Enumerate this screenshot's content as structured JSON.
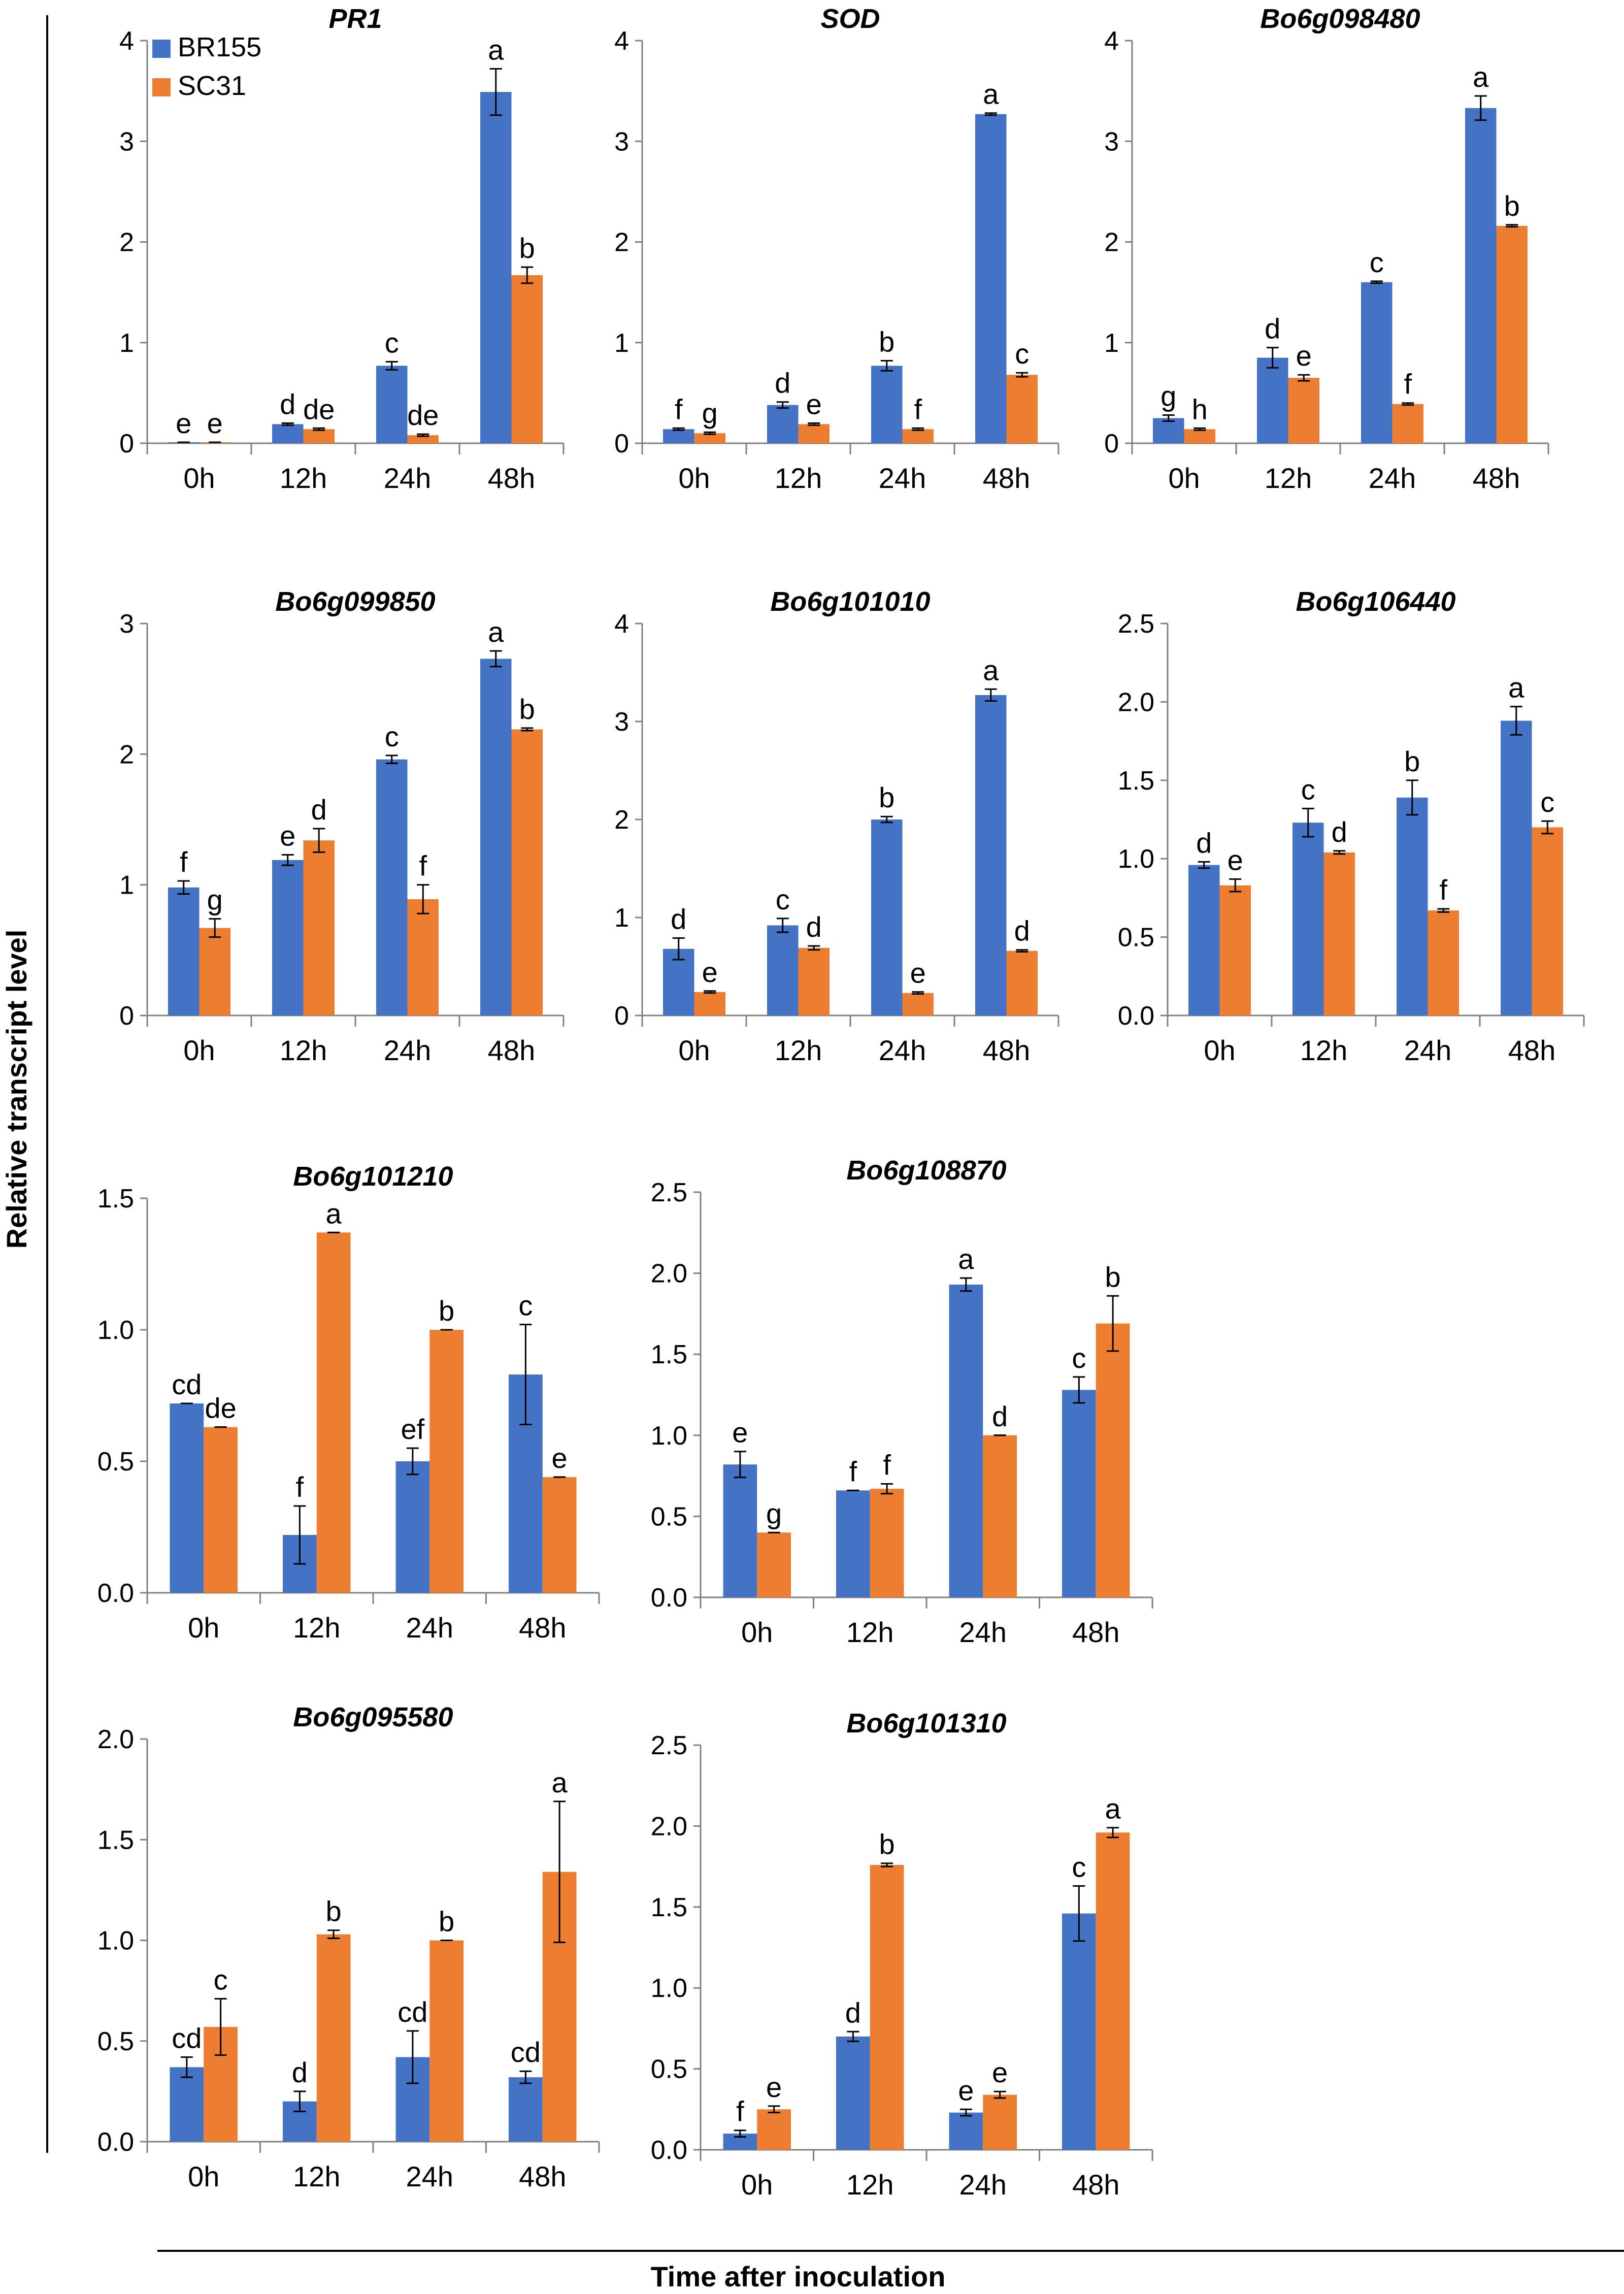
{
  "figure": {
    "ylabel": "Relative transcript level",
    "xlabel": "Time after inoculation",
    "series_colors": {
      "BR155": "#4472C4",
      "SC31": "#ED7D31"
    },
    "legend": [
      {
        "name": "BR155",
        "color": "#4472C4"
      },
      {
        "name": "SC31",
        "color": "#ED7D31"
      }
    ]
  },
  "chart_data": [
    {
      "type": "bar",
      "title": "PR1",
      "categories": [
        "0h",
        "12h",
        "24h",
        "48h"
      ],
      "ylim": [
        0,
        4
      ],
      "yticks": [
        "0",
        "1",
        "2",
        "3",
        "4"
      ],
      "series": [
        {
          "name": "BR155",
          "values": [
            0.01,
            0.19,
            0.77,
            3.49
          ],
          "errors": [
            0.0,
            0.01,
            0.04,
            0.23
          ],
          "letters": [
            "e",
            "d",
            "c",
            "a"
          ]
        },
        {
          "name": "SC31",
          "values": [
            0.01,
            0.14,
            0.08,
            1.67
          ],
          "errors": [
            0.0,
            0.01,
            0.01,
            0.08
          ],
          "letters": [
            "e",
            "de",
            "de",
            "b"
          ]
        }
      ]
    },
    {
      "type": "bar",
      "title": "SOD",
      "categories": [
        "0h",
        "12h",
        "24h",
        "48h"
      ],
      "ylim": [
        0,
        4
      ],
      "yticks": [
        "0",
        "1",
        "2",
        "3",
        "4"
      ],
      "series": [
        {
          "name": "BR155",
          "values": [
            0.14,
            0.38,
            0.77,
            3.27
          ],
          "errors": [
            0.01,
            0.03,
            0.05,
            0.01
          ],
          "letters": [
            "f",
            "d",
            "b",
            "a"
          ]
        },
        {
          "name": "SC31",
          "values": [
            0.1,
            0.19,
            0.14,
            0.68
          ],
          "errors": [
            0.01,
            0.01,
            0.01,
            0.02
          ],
          "letters": [
            "g",
            "e",
            "f",
            "c"
          ]
        }
      ]
    },
    {
      "type": "bar",
      "title": "Bo6g098480",
      "categories": [
        "0h",
        "12h",
        "24h",
        "48h"
      ],
      "ylim": [
        0,
        4
      ],
      "yticks": [
        "0",
        "1",
        "2",
        "3",
        "4"
      ],
      "series": [
        {
          "name": "BR155",
          "values": [
            0.25,
            0.85,
            1.6,
            3.33
          ],
          "errors": [
            0.03,
            0.1,
            0.01,
            0.12
          ],
          "letters": [
            "g",
            "d",
            "c",
            "a"
          ]
        },
        {
          "name": "SC31",
          "values": [
            0.14,
            0.65,
            0.39,
            2.16
          ],
          "errors": [
            0.01,
            0.03,
            0.01,
            0.01
          ],
          "letters": [
            "h",
            "e",
            "f",
            "b"
          ]
        }
      ]
    },
    {
      "type": "bar",
      "title": "Bo6g099850",
      "categories": [
        "0h",
        "12h",
        "24h",
        "48h"
      ],
      "ylim": [
        0,
        3
      ],
      "yticks": [
        "0",
        "1",
        "2",
        "3"
      ],
      "series": [
        {
          "name": "BR155",
          "values": [
            0.98,
            1.19,
            1.96,
            2.73
          ],
          "errors": [
            0.05,
            0.04,
            0.03,
            0.06
          ],
          "letters": [
            "f",
            "e",
            "c",
            "a"
          ]
        },
        {
          "name": "SC31",
          "values": [
            0.67,
            1.34,
            0.89,
            2.19
          ],
          "errors": [
            0.07,
            0.09,
            0.11,
            0.01
          ],
          "letters": [
            "g",
            "d",
            "f",
            "b"
          ]
        }
      ]
    },
    {
      "type": "bar",
      "title": "Bo6g101010",
      "categories": [
        "0h",
        "12h",
        "24h",
        "48h"
      ],
      "ylim": [
        0,
        4
      ],
      "yticks": [
        "0",
        "1",
        "2",
        "3",
        "4"
      ],
      "series": [
        {
          "name": "BR155",
          "values": [
            0.68,
            0.92,
            2.0,
            3.27
          ],
          "errors": [
            0.11,
            0.07,
            0.03,
            0.06
          ],
          "letters": [
            "d",
            "c",
            "b",
            "a"
          ]
        },
        {
          "name": "SC31",
          "values": [
            0.24,
            0.69,
            0.23,
            0.66
          ],
          "errors": [
            0.01,
            0.02,
            0.01,
            0.01
          ],
          "letters": [
            "e",
            "d",
            "e",
            "d"
          ]
        }
      ]
    },
    {
      "type": "bar",
      "title": "Bo6g106440",
      "categories": [
        "0h",
        "12h",
        "24h",
        "48h"
      ],
      "ylim": [
        0,
        2.5
      ],
      "yticks": [
        "0.0",
        "0.5",
        "1.0",
        "1.5",
        "2.0",
        "2.5"
      ],
      "series": [
        {
          "name": "BR155",
          "values": [
            0.96,
            1.23,
            1.39,
            1.88
          ],
          "errors": [
            0.02,
            0.09,
            0.11,
            0.09
          ],
          "letters": [
            "d",
            "c",
            "b",
            "a"
          ]
        },
        {
          "name": "SC31",
          "values": [
            0.83,
            1.04,
            0.67,
            1.2
          ],
          "errors": [
            0.04,
            0.01,
            0.01,
            0.04
          ],
          "letters": [
            "e",
            "d",
            "f",
            "c"
          ]
        }
      ]
    },
    {
      "type": "bar",
      "title": "Bo6g101210",
      "categories": [
        "0h",
        "12h",
        "24h",
        "48h"
      ],
      "ylim": [
        0,
        1.5
      ],
      "yticks": [
        "0.0",
        "0.5",
        "1.0",
        "1.5"
      ],
      "series": [
        {
          "name": "BR155",
          "values": [
            0.72,
            0.22,
            0.5,
            0.83
          ],
          "errors": [
            0.0,
            0.11,
            0.05,
            0.19
          ],
          "letters": [
            "cd",
            "f",
            "ef",
            "c"
          ]
        },
        {
          "name": "SC31",
          "values": [
            0.63,
            1.37,
            1.0,
            0.44
          ],
          "errors": [
            0.0,
            0.0,
            0.0,
            0.0
          ],
          "letters": [
            "de",
            "a",
            "b",
            "e"
          ]
        }
      ]
    },
    {
      "type": "bar",
      "title": "Bo6g108870",
      "categories": [
        "0h",
        "12h",
        "24h",
        "48h"
      ],
      "ylim": [
        0,
        2.5
      ],
      "yticks": [
        "0.0",
        "0.5",
        "1.0",
        "1.5",
        "2.0",
        "2.5"
      ],
      "series": [
        {
          "name": "BR155",
          "values": [
            0.82,
            0.66,
            1.93,
            1.28
          ],
          "errors": [
            0.08,
            0.0,
            0.04,
            0.08
          ],
          "letters": [
            "e",
            "f",
            "a",
            "c"
          ]
        },
        {
          "name": "SC31",
          "values": [
            0.4,
            0.67,
            1.0,
            1.69
          ],
          "errors": [
            0.0,
            0.03,
            0.0,
            0.17
          ],
          "letters": [
            "g",
            "f",
            "d",
            "b"
          ]
        }
      ]
    },
    {
      "type": "bar",
      "title": "Bo6g095580",
      "categories": [
        "0h",
        "12h",
        "24h",
        "48h"
      ],
      "ylim": [
        0,
        2.0
      ],
      "yticks": [
        "0.0",
        "0.5",
        "1.0",
        "1.5",
        "2.0"
      ],
      "series": [
        {
          "name": "BR155",
          "values": [
            0.37,
            0.2,
            0.42,
            0.32
          ],
          "errors": [
            0.05,
            0.05,
            0.13,
            0.03
          ],
          "letters": [
            "cd",
            "d",
            "cd",
            "cd"
          ]
        },
        {
          "name": "SC31",
          "values": [
            0.57,
            1.03,
            1.0,
            1.34
          ],
          "errors": [
            0.14,
            0.02,
            0.0,
            0.35
          ],
          "letters": [
            "c",
            "b",
            "b",
            "a"
          ]
        }
      ]
    },
    {
      "type": "bar",
      "title": "Bo6g101310",
      "categories": [
        "0h",
        "12h",
        "24h",
        "48h"
      ],
      "ylim": [
        0,
        2.5
      ],
      "yticks": [
        "0.0",
        "0.5",
        "1.0",
        "1.5",
        "2.0",
        "2.5"
      ],
      "series": [
        {
          "name": "BR155",
          "values": [
            0.1,
            0.7,
            0.23,
            1.46
          ],
          "errors": [
            0.02,
            0.03,
            0.02,
            0.17
          ],
          "letters": [
            "f",
            "d",
            "e",
            "c"
          ]
        },
        {
          "name": "SC31",
          "values": [
            0.25,
            1.76,
            0.34,
            1.96
          ],
          "errors": [
            0.02,
            0.01,
            0.02,
            0.03
          ],
          "letters": [
            "e",
            "b",
            "e",
            "a"
          ]
        }
      ]
    }
  ]
}
